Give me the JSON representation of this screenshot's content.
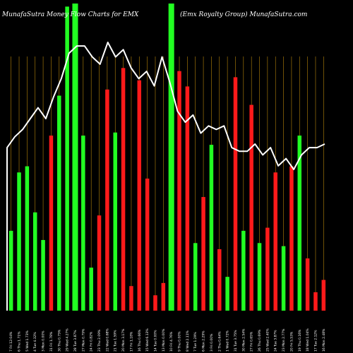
{
  "chart_data": {
    "type": "bar",
    "title_left": "MunafaSutra  Money Flow  Charts for EMX",
    "title_right": "(Emx Royalty Group) MunafaSutra.com",
    "colors": {
      "background": "#000000",
      "positive": "#22ff22",
      "negative": "#ff1a1a",
      "line": "#ffffff",
      "grid": "#b8860b"
    },
    "grid": true,
    "ylim": [
      0,
      100
    ],
    "bars": [
      {
        "label": "7 Fri 12:04% ",
        "value": 26,
        "color": "green",
        "highlight": false
      },
      {
        "label": "6 Thu 1.71% ",
        "value": 45,
        "color": "green",
        "highlight": false
      },
      {
        "label": "5 Wed 1.73% ",
        "value": 47,
        "color": "green",
        "highlight": false
      },
      {
        "label": "4 Tue 4.32% ",
        "value": 32,
        "color": "green",
        "highlight": false
      },
      {
        "label": "3 Mon 0.00% ",
        "value": 23,
        "color": "green",
        "highlight": false
      },
      {
        "label": "31 Fri 1.78% ",
        "value": 57,
        "color": "red",
        "highlight": false
      },
      {
        "label": "30 Thu 0.75% ",
        "value": 70,
        "color": "green",
        "highlight": false
      },
      {
        "label": "29 Wed 4.27% ",
        "value": 99,
        "color": "green",
        "highlight": false
      },
      {
        "label": "28 Tue 3.87% ",
        "value": 100,
        "color": "green",
        "highlight": true
      },
      {
        "label": "27 Mon 0.79% ",
        "value": 57,
        "color": "green",
        "highlight": false
      },
      {
        "label": "24 Fri 0.82% ",
        "value": 14,
        "color": "green",
        "highlight": false
      },
      {
        "label": "23 Thu 2.09% ",
        "value": 31,
        "color": "red",
        "highlight": false
      },
      {
        "label": "22 Wed 0.68% ",
        "value": 72,
        "color": "red",
        "highlight": false
      },
      {
        "label": "21 Tue 1.59% ",
        "value": 58,
        "color": "green",
        "highlight": false
      },
      {
        "label": "20 Mon 3.17% ",
        "value": 79,
        "color": "red",
        "highlight": false
      },
      {
        "label": "17 Fri 1.18% ",
        "value": 8,
        "color": "red",
        "highlight": false
      },
      {
        "label": "16 Thu 0.66% ",
        "value": 75,
        "color": "red",
        "highlight": false
      },
      {
        "label": "15 Wed 6.13% ",
        "value": 43,
        "color": "red",
        "highlight": false
      },
      {
        "label": "14 Tue 0.00% ",
        "value": 5,
        "color": "red",
        "highlight": false
      },
      {
        "label": "13 Mon 0.00% ",
        "value": 9,
        "color": "red",
        "highlight": false
      },
      {
        "label": "10 Fri 4.76% ",
        "value": 100,
        "color": "green",
        "highlight": true
      },
      {
        "label": "9 Thu 0.00% ",
        "value": 78,
        "color": "red",
        "highlight": false
      },
      {
        "label": "8 Wed 2.11% ",
        "value": 73,
        "color": "red",
        "highlight": false
      },
      {
        "label": "7 Tue 1.29% ",
        "value": 22,
        "color": "green",
        "highlight": false
      },
      {
        "label": "6 Mon 2.29% ",
        "value": 37,
        "color": "red",
        "highlight": false
      },
      {
        "label": "3 Fri 0.00% ",
        "value": 54,
        "color": "green",
        "highlight": false
      },
      {
        "label": "2 Thu 0.64% ",
        "value": 20,
        "color": "red",
        "highlight": false
      },
      {
        "label": "1 Wed 0.72% ",
        "value": 11,
        "color": "green",
        "highlight": false
      },
      {
        "label": "31 Tue 3.75% ",
        "value": 76,
        "color": "red",
        "highlight": false
      },
      {
        "label": "30 Mon 2.54% ",
        "value": 26,
        "color": "green",
        "highlight": false
      },
      {
        "label": "27 Fri 0.65% ",
        "value": 67,
        "color": "red",
        "highlight": false
      },
      {
        "label": "26 Thu 0.69% ",
        "value": 22,
        "color": "green",
        "highlight": false
      },
      {
        "label": "25 Wed 2.40% ",
        "value": 27,
        "color": "red",
        "highlight": false
      },
      {
        "label": "24 Tue 3.87% ",
        "value": 45,
        "color": "red",
        "highlight": false
      },
      {
        "label": "23 Mon 2.77% ",
        "value": 21,
        "color": "green",
        "highlight": false
      },
      {
        "label": "20 Fri 5.53% ",
        "value": 47,
        "color": "red",
        "highlight": false
      },
      {
        "label": "19 Thu 0.16% ",
        "value": 57,
        "color": "green",
        "highlight": false
      },
      {
        "label": "18 Wed 1.04% ",
        "value": 17,
        "color": "red",
        "highlight": false
      },
      {
        "label": "17 Tue 2.12% ",
        "value": 6,
        "color": "red",
        "highlight": false
      },
      {
        "label": "16 Mon 2.48% ",
        "value": 10,
        "color": "red",
        "highlight": false
      }
    ],
    "line": [
      62,
      65,
      67,
      70,
      73,
      70,
      76,
      81,
      88,
      90,
      90,
      87,
      85,
      91,
      87,
      89,
      84,
      81,
      83,
      79,
      87,
      80,
      72,
      69,
      71,
      66,
      68,
      67,
      68,
      62,
      61,
      61,
      63,
      60,
      62,
      57,
      59,
      56,
      60,
      62,
      62,
      63
    ]
  }
}
